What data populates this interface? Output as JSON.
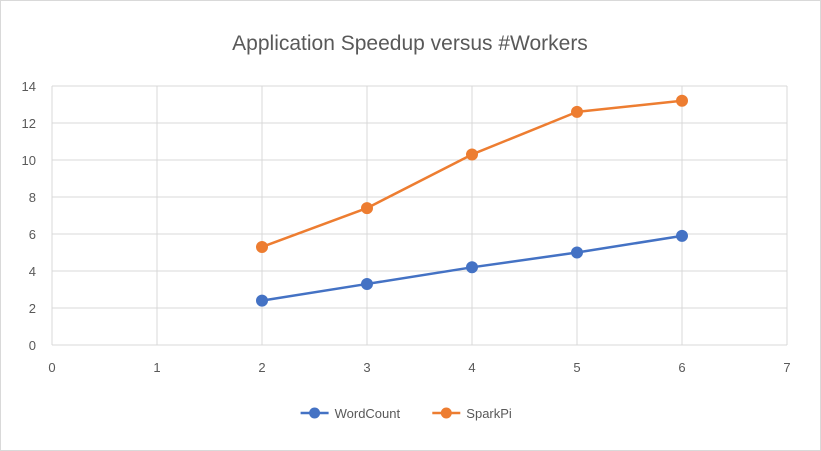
{
  "chart_data": {
    "type": "scatter",
    "title": "Application Speedup  versus #Workers",
    "xlabel": "",
    "ylabel": "",
    "xlim": [
      0,
      7
    ],
    "ylim": [
      0,
      14
    ],
    "x_ticks": [
      "0",
      "1",
      "2",
      "3",
      "4",
      "5",
      "6",
      "7"
    ],
    "y_ticks": [
      "0",
      "2",
      "4",
      "6",
      "8",
      "10",
      "12",
      "14"
    ],
    "grid": true,
    "legend_position": "bottom",
    "series": [
      {
        "name": "WordCount",
        "color": "#4472c4",
        "x": [
          2,
          3,
          4,
          5,
          6
        ],
        "y": [
          2.4,
          3.3,
          4.2,
          5.0,
          5.9
        ]
      },
      {
        "name": "SparkPi",
        "color": "#ed7d31",
        "x": [
          2,
          3,
          4,
          5,
          6
        ],
        "y": [
          5.3,
          7.4,
          10.3,
          12.6,
          13.2
        ]
      }
    ]
  }
}
